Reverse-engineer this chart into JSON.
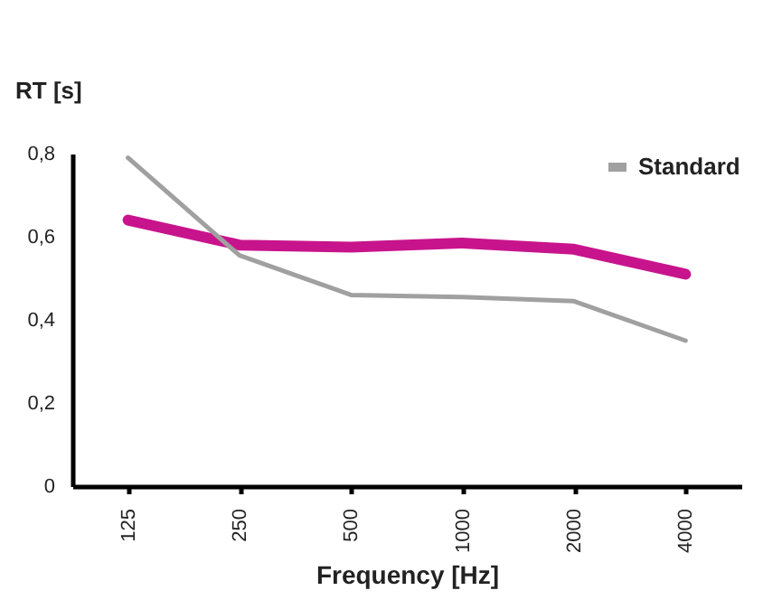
{
  "chart_data": {
    "type": "line",
    "xlabel": "Frequency [Hz]",
    "ylabel": "RT [s]",
    "categories": [
      "125",
      "250",
      "500",
      "1000",
      "2000",
      "4000"
    ],
    "series": [
      {
        "color": "#c8148c",
        "values": [
          0.64,
          0.58,
          0.575,
          0.585,
          0.57,
          0.51
        ]
      },
      {
        "name": "Standard",
        "color": "#a0a0a0",
        "values": [
          0.79,
          0.555,
          0.46,
          0.455,
          0.445,
          0.35
        ]
      }
    ],
    "ylim": [
      0,
      0.8
    ],
    "yticks": [
      {
        "value": 0,
        "label": "0"
      },
      {
        "value": 0.2,
        "label": "0,2"
      },
      {
        "value": 0.4,
        "label": "0,4"
      },
      {
        "value": 0.6,
        "label": "0,6"
      },
      {
        "value": 0.8,
        "label": "0,8"
      }
    ],
    "grid": false,
    "legend": "top right",
    "marker": "none",
    "line_style": "solid"
  }
}
